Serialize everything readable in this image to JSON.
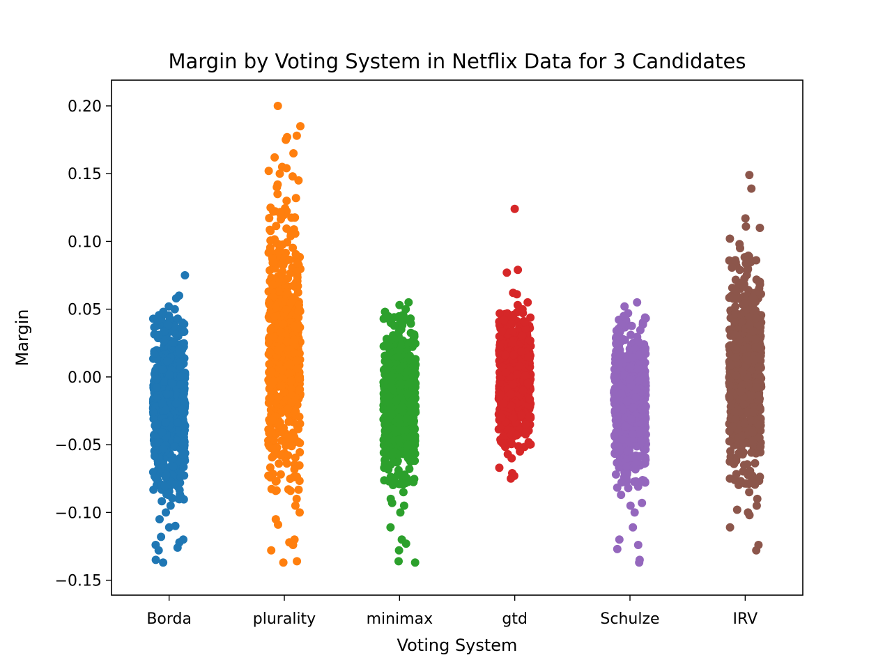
{
  "chart_data": {
    "type": "scatter",
    "subtype": "strip plot",
    "title": "Margin by Voting System in Netflix Data for 3 Candidates",
    "xlabel": "Voting System",
    "ylabel": "Margin",
    "categories": [
      "Borda",
      "plurality",
      "minimax",
      "gtd",
      "Schulze",
      "IRV"
    ],
    "ylim": [
      -0.161,
      0.219
    ],
    "yticks": [
      -0.15,
      -0.1,
      -0.05,
      0.0,
      0.05,
      0.1,
      0.15,
      0.2
    ],
    "ytick_labels": [
      "−0.15",
      "−0.10",
      "−0.05",
      "0.00",
      "0.05",
      "0.10",
      "0.15",
      "0.20"
    ],
    "grid": false,
    "legend": "none",
    "series": [
      {
        "category": "Borda",
        "color": "#1f77b4",
        "dense_range": [
          -0.092,
          0.046
        ],
        "points": [
          0.075,
          0.06,
          0.058,
          0.052,
          0.05,
          0.048,
          -0.095,
          -0.1,
          -0.105,
          -0.11,
          -0.111,
          -0.118,
          -0.12,
          -0.122,
          -0.124,
          -0.126,
          -0.128,
          -0.135,
          -0.137
        ]
      },
      {
        "category": "plurality",
        "color": "#ff7f0e",
        "dense_range": [
          -0.085,
          0.125
        ],
        "points": [
          0.2,
          0.185,
          0.178,
          0.177,
          0.175,
          0.165,
          0.162,
          0.155,
          0.154,
          0.152,
          0.15,
          0.148,
          0.145,
          0.142,
          0.14,
          0.135,
          0.132,
          0.13,
          -0.09,
          -0.095,
          -0.1,
          -0.105,
          -0.109,
          -0.12,
          -0.122,
          -0.124,
          -0.128,
          -0.136,
          -0.137
        ]
      },
      {
        "category": "minimax",
        "color": "#2ca02c",
        "dense_range": [
          -0.08,
          0.046
        ],
        "points": [
          0.055,
          0.053,
          0.05,
          0.048,
          -0.085,
          -0.09,
          -0.093,
          -0.095,
          -0.1,
          -0.111,
          -0.12,
          -0.123,
          -0.128,
          -0.136,
          -0.137
        ]
      },
      {
        "category": "gtd",
        "color": "#d62728",
        "dense_range": [
          -0.052,
          0.048
        ],
        "points": [
          0.124,
          0.079,
          0.077,
          0.062,
          0.061,
          0.055,
          0.053,
          0.05,
          -0.055,
          -0.057,
          -0.06,
          -0.067,
          -0.071,
          -0.073,
          -0.075
        ]
      },
      {
        "category": "Schulze",
        "color": "#9467bd",
        "dense_range": [
          -0.083,
          0.044
        ],
        "points": [
          0.055,
          0.052,
          0.047,
          0.045,
          -0.087,
          -0.093,
          -0.095,
          -0.1,
          -0.111,
          -0.12,
          -0.124,
          -0.127,
          -0.135,
          -0.137
        ]
      },
      {
        "category": "IRV",
        "color": "#8c564b",
        "dense_range": [
          -0.08,
          0.09
        ],
        "points": [
          0.149,
          0.139,
          0.117,
          0.111,
          0.11,
          0.102,
          0.098,
          0.095,
          -0.085,
          -0.09,
          -0.095,
          -0.098,
          -0.1,
          -0.102,
          -0.111,
          -0.124,
          -0.128
        ]
      }
    ]
  }
}
